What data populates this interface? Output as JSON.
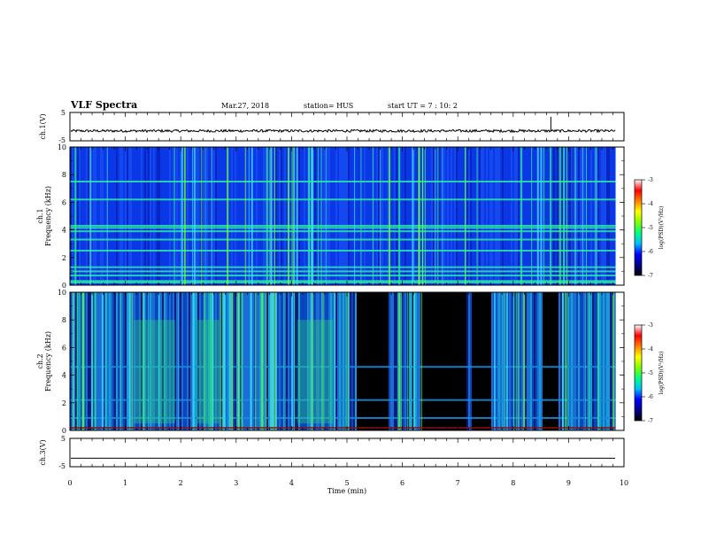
{
  "header": {
    "title": "VLF Spectra",
    "date": "Mar.27, 2018",
    "station": "station= HUS",
    "start": "start  UT  =   7 : 10: 2"
  },
  "chart_data": [
    {
      "type": "line",
      "name": "ch1-waveform",
      "ylabel": "ch.1(V)",
      "ylim": [
        -5,
        5
      ],
      "yticks": [
        "5",
        "-5"
      ],
      "baseline": -1.5,
      "spike": {
        "x": 8.68,
        "y": 3.5
      }
    },
    {
      "type": "heatmap",
      "name": "ch1-spectrogram",
      "ylabel_top": "ch.1",
      "ylabel": "Frequency (kHz)",
      "ylim": [
        0,
        10
      ],
      "yticks": [
        "0",
        "2",
        "4",
        "6",
        "8",
        "10"
      ],
      "horizontal_lines_khz": [
        0.2,
        0.3,
        0.7,
        1.0,
        1.3,
        2.5,
        3.3,
        3.9,
        4.15,
        4.3,
        6.2,
        7.5
      ]
    },
    {
      "type": "heatmap",
      "name": "ch2-spectrogram",
      "ylabel_top": "ch.2",
      "ylabel": "Frequency (kHz)",
      "ylim": [
        0,
        10
      ],
      "yticks": [
        "0",
        "2",
        "4",
        "6",
        "8",
        "10"
      ],
      "horizontal_lines_khz": [
        0.9,
        2.2,
        4.6
      ],
      "quiet_intervals_min": [
        [
          5.15,
          5.75
        ],
        [
          6.3,
          7.15
        ],
        [
          7.25,
          7.6
        ],
        [
          8.5,
          8.8
        ]
      ]
    },
    {
      "type": "line",
      "name": "ch3-waveform",
      "ylabel": "ch.3(V)",
      "ylim": [
        -5,
        5
      ],
      "yticks": [
        "5",
        "-5"
      ],
      "baseline": -2.0
    }
  ],
  "xaxis": {
    "label": "Time  (min)",
    "range": [
      0,
      10
    ],
    "ticks": [
      "0",
      "1",
      "2",
      "3",
      "4",
      "5",
      "6",
      "7",
      "8",
      "9",
      "10"
    ],
    "data_end": 9.85
  },
  "colorbar": {
    "label": "log(PSD)(V²/Hz)",
    "range": [
      -7,
      -3
    ],
    "ticks": [
      "-3",
      "-4",
      "-5",
      "-6",
      "-7"
    ],
    "colors": [
      "#000000",
      "#00008b",
      "#0000ff",
      "#00bfff",
      "#00ff80",
      "#80ff00",
      "#ffff00",
      "#ff8000",
      "#ff0000",
      "#ffffff"
    ]
  }
}
